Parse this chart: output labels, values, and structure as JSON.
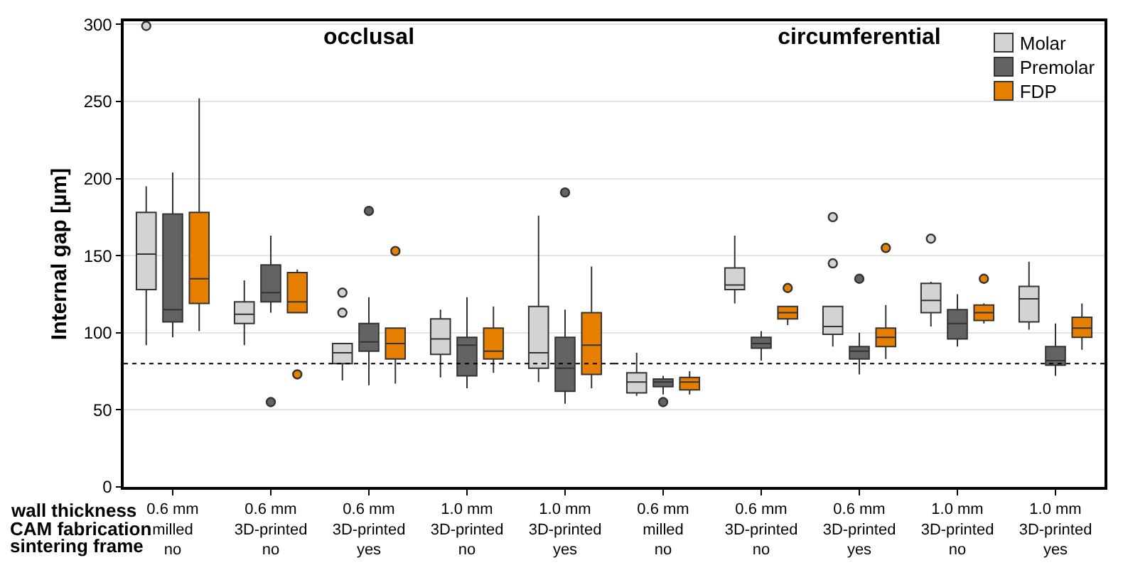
{
  "chart_data": [
    {
      "type": "box",
      "title": "occlusal",
      "ylabel": "Internal gap [µm]",
      "categories": [
        "0.6 mm\nmilled\nno",
        "0.6 mm\n3D-printed\nno",
        "0.6 mm\n3D-printed\nyes",
        "1.0 mm\n3D-printed\nno",
        "1.0 mm\n3D-printed\nyes"
      ],
      "series": [
        {
          "color": "#d3d3d3",
          "boxes": [
            {
              "low": 92,
              "q1": 128,
              "median": 151,
              "q3": 178,
              "high": 195,
              "outliers": [
                299
              ]
            },
            {
              "low": 92,
              "q1": 106,
              "median": 112,
              "q3": 120,
              "high": 134
            },
            {
              "low": 69,
              "q1": 80,
              "median": 87,
              "q3": 93,
              "high": 93,
              "outliers": [
                113,
                126
              ]
            },
            {
              "low": 71,
              "q1": 86,
              "median": 96,
              "q3": 109,
              "high": 115
            },
            {
              "low": 68,
              "q1": 77,
              "median": 87,
              "q3": 117,
              "high": 176
            }
          ]
        },
        {
          "color": "#636363",
          "boxes": [
            {
              "low": 97,
              "q1": 107,
              "median": 115,
              "q3": 177,
              "high": 204
            },
            {
              "low": 113,
              "q1": 120,
              "median": 126,
              "q3": 144,
              "high": 163,
              "outliers": [
                55
              ]
            },
            {
              "low": 66,
              "q1": 88,
              "median": 94,
              "q3": 106,
              "high": 123,
              "outliers": [
                179
              ]
            },
            {
              "low": 64,
              "q1": 72,
              "median": 92,
              "q3": 97,
              "high": 123
            },
            {
              "low": 54,
              "q1": 62,
              "median": 77,
              "q3": 97,
              "high": 115,
              "outliers": [
                191
              ]
            }
          ]
        },
        {
          "color": "#e67e00",
          "boxes": [
            {
              "low": 101,
              "q1": 119,
              "median": 135,
              "q3": 178,
              "high": 252
            },
            {
              "low": 113,
              "q1": 113,
              "median": 120,
              "q3": 139,
              "high": 141,
              "outliers": [
                73
              ]
            },
            {
              "low": 67,
              "q1": 83,
              "median": 93,
              "q3": 103,
              "high": 103,
              "outliers": [
                153
              ]
            },
            {
              "low": 74,
              "q1": 83,
              "median": 88,
              "q3": 103,
              "high": 117
            },
            {
              "low": 64,
              "q1": 73,
              "median": 92,
              "q3": 113,
              "high": 143
            }
          ]
        }
      ],
      "ylim": [
        0,
        302
      ],
      "yticks": [
        0,
        50,
        100,
        150,
        200,
        250,
        300
      ],
      "grid": "y",
      "ref_lines": [
        {
          "axis": "y",
          "value": 80,
          "line_style": "dotted"
        }
      ],
      "annotations": [
        "wall thickness",
        "CAM fabrication",
        "sintering frame"
      ]
    },
    {
      "type": "box",
      "title": "circumferential",
      "categories": [
        "0.6 mm\nmilled\nno",
        "0.6 mm\n3D-printed\nno",
        "0.6 mm\n3D-printed\nyes",
        "1.0 mm\n3D-printed\nno",
        "1.0 mm\n3D-printed\nyes"
      ],
      "series": [
        {
          "name": "Molar",
          "color": "#d3d3d3",
          "boxes": [
            {
              "low": 59,
              "q1": 61,
              "median": 68,
              "q3": 74,
              "high": 87
            },
            {
              "low": 119,
              "q1": 128,
              "median": 131,
              "q3": 142,
              "high": 163
            },
            {
              "low": 91,
              "q1": 99,
              "median": 104,
              "q3": 117,
              "high": 117,
              "outliers": [
                145,
                175
              ]
            },
            {
              "low": 104,
              "q1": 113,
              "median": 121,
              "q3": 132,
              "high": 133,
              "outliers": [
                161
              ]
            },
            {
              "low": 102,
              "q1": 107,
              "median": 122,
              "q3": 130,
              "high": 146
            }
          ]
        },
        {
          "name": "Premolar",
          "color": "#636363",
          "boxes": [
            {
              "low": 60,
              "q1": 65,
              "median": 68,
              "q3": 70,
              "high": 72,
              "outliers": [
                55
              ]
            },
            {
              "low": 82,
              "q1": 90,
              "median": 93,
              "q3": 97,
              "high": 101
            },
            {
              "low": 73,
              "q1": 83,
              "median": 88,
              "q3": 91,
              "high": 100,
              "outliers": [
                135
              ]
            },
            {
              "low": 91,
              "q1": 96,
              "median": 106,
              "q3": 115,
              "high": 125
            },
            {
              "low": 72,
              "q1": 79,
              "median": 82,
              "q3": 91,
              "high": 106
            }
          ]
        },
        {
          "name": "FDP",
          "color": "#e67e00",
          "boxes": [
            {
              "low": 60,
              "q1": 63,
              "median": 68,
              "q3": 71,
              "high": 75
            },
            {
              "low": 105,
              "q1": 109,
              "median": 113,
              "q3": 117,
              "high": 117,
              "outliers": [
                129
              ]
            },
            {
              "low": 83,
              "q1": 91,
              "median": 97,
              "q3": 103,
              "high": 118,
              "outliers": [
                155
              ]
            },
            {
              "low": 106,
              "q1": 108,
              "median": 113,
              "q3": 118,
              "high": 119,
              "outliers": [
                135
              ]
            },
            {
              "low": 89,
              "q1": 97,
              "median": 103,
              "q3": 110,
              "high": 119
            }
          ]
        }
      ],
      "ylim": [
        0,
        302
      ],
      "yticks": [
        0,
        50,
        100,
        150,
        200,
        250,
        300
      ],
      "grid": "y",
      "legend": "top right",
      "tick_labels": "x",
      "ref_lines": [
        {
          "axis": "y",
          "value": 80,
          "line_style": "dotted"
        }
      ]
    }
  ]
}
